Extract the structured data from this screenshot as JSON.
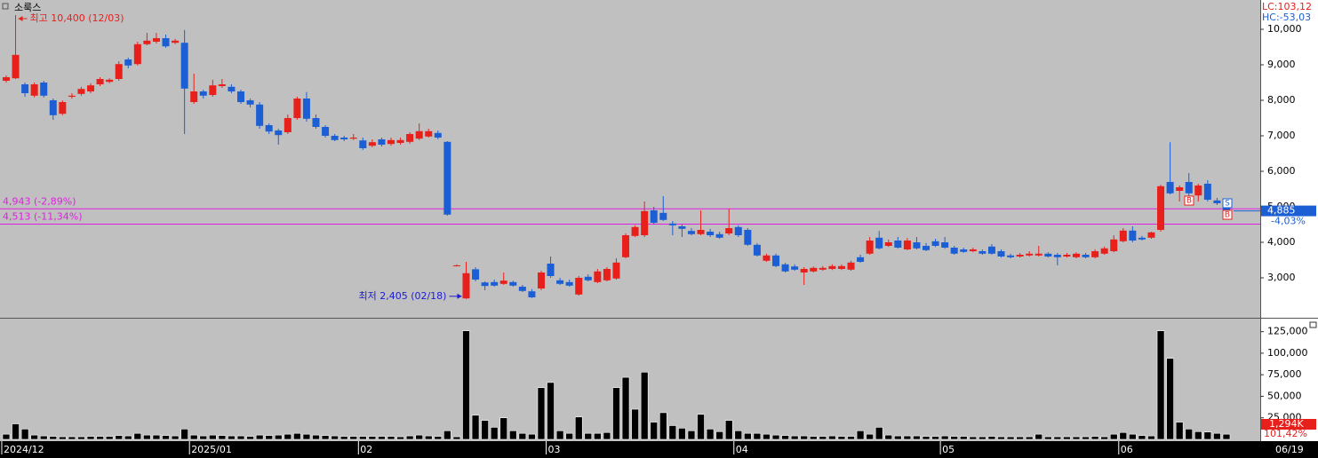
{
  "chart_data": [
    {
      "type": "candlestick",
      "title": "소룩스",
      "open": [
        8550,
        8620,
        8450,
        8130,
        8500,
        8000,
        7620,
        8100,
        8180,
        8250,
        8450,
        8520,
        8600,
        9150,
        9020,
        9580,
        9650,
        9750,
        9620,
        9620,
        7950,
        8250,
        8150,
        8400,
        8380,
        8250,
        8000,
        7880,
        7300,
        7150,
        7100,
        7500,
        8050,
        7500,
        7250,
        7000,
        6950,
        6920,
        6870,
        6720,
        6900,
        6770,
        6800,
        6830,
        6920,
        6980,
        7080,
        6830,
        3350,
        2420,
        3240,
        2870,
        2880,
        2830,
        2880,
        2750,
        2620,
        2700,
        3400,
        2930,
        2880,
        2530,
        3030,
        2880,
        2930,
        2980,
        3580,
        4180,
        4200,
        4900,
        4830,
        4530,
        4450,
        4320,
        4230,
        4300,
        4230,
        4250,
        4430,
        4350,
        3930,
        3480,
        3630,
        3380,
        3320,
        3150,
        3180,
        3230,
        3250,
        3250,
        3230,
        3580,
        3680,
        4130,
        3900,
        4050,
        3800,
        4000,
        3900,
        4030,
        4000,
        3850,
        3800,
        3750,
        3750,
        3880,
        3750,
        3630,
        3600,
        3630,
        3630,
        3680,
        3650,
        3600,
        3580,
        3650,
        3580,
        3680,
        3750,
        4030,
        4330,
        4130,
        4130,
        4350,
        5700,
        5450,
        5700,
        5320,
        5650,
        5180,
        5050
      ],
      "high": [
        8700,
        10400,
        8500,
        8500,
        8550,
        8050,
        8000,
        8200,
        8380,
        8480,
        8650,
        8620,
        9100,
        9200,
        9650,
        9900,
        9900,
        9850,
        9730,
        9980,
        8750,
        8300,
        8580,
        8600,
        8450,
        8300,
        8050,
        7950,
        7350,
        7200,
        7600,
        8100,
        8230,
        7600,
        7300,
        7050,
        7000,
        7050,
        6950,
        6900,
        6950,
        6950,
        6950,
        7100,
        7350,
        7200,
        7150,
        6850,
        3380,
        3450,
        3300,
        2900,
        2950,
        3150,
        2920,
        2800,
        2680,
        3200,
        3600,
        3000,
        2950,
        3050,
        3100,
        3250,
        3300,
        3550,
        4250,
        4480,
        5150,
        5000,
        5300,
        4600,
        4500,
        4400,
        4900,
        4380,
        4300,
        4950,
        4480,
        4400,
        3980,
        3680,
        3680,
        3420,
        3380,
        3300,
        3320,
        3330,
        3380,
        3380,
        3480,
        3650,
        4150,
        4320,
        4080,
        4150,
        4120,
        4150,
        3980,
        4100,
        4150,
        3900,
        3850,
        3850,
        3800,
        3950,
        3800,
        3680,
        3700,
        3750,
        3900,
        3720,
        3700,
        3700,
        3720,
        3700,
        3800,
        3880,
        4200,
        4400,
        4450,
        4180,
        4300,
        5620,
        6820,
        5600,
        5950,
        5650,
        5750,
        5250,
        5100
      ],
      "low": [
        8500,
        8600,
        8100,
        8080,
        8080,
        7450,
        7580,
        8050,
        8130,
        8200,
        8400,
        8480,
        8550,
        8900,
        8980,
        9550,
        9600,
        9480,
        9580,
        7050,
        7900,
        8050,
        8100,
        8350,
        8200,
        7900,
        7800,
        7200,
        7050,
        6750,
        7050,
        7450,
        7400,
        7200,
        6950,
        6850,
        6850,
        6880,
        6600,
        6680,
        6700,
        6720,
        6750,
        6780,
        6880,
        6950,
        6900,
        4750,
        3320,
        2405,
        2900,
        2650,
        2750,
        2800,
        2750,
        2600,
        2430,
        2650,
        3000,
        2800,
        2750,
        2500,
        2900,
        2850,
        2900,
        2950,
        3550,
        4150,
        4150,
        4500,
        4600,
        4200,
        4150,
        4200,
        4200,
        4150,
        4100,
        4200,
        4150,
        3900,
        3600,
        3450,
        3300,
        3150,
        3200,
        2800,
        3150,
        3200,
        3220,
        3220,
        3200,
        3420,
        3650,
        3800,
        3870,
        3820,
        3780,
        3800,
        3750,
        3870,
        3820,
        3650,
        3700,
        3720,
        3650,
        3650,
        3570,
        3550,
        3570,
        3600,
        3600,
        3570,
        3350,
        3570,
        3550,
        3550,
        3550,
        3650,
        3720,
        4000,
        4000,
        4050,
        4100,
        4300,
        5350,
        5150,
        5100,
        5150,
        5150,
        5050,
        4850
      ],
      "close": [
        8650,
        9280,
        8200,
        8450,
        8130,
        7580,
        7950,
        8130,
        8320,
        8420,
        8600,
        8580,
        9020,
        8980,
        9580,
        9680,
        9750,
        9520,
        9680,
        8330,
        8250,
        8130,
        8420,
        8450,
        8250,
        7950,
        7880,
        7280,
        7120,
        7020,
        7500,
        8050,
        7480,
        7250,
        7000,
        6880,
        6900,
        6950,
        6650,
        6820,
        6750,
        6880,
        6880,
        7050,
        7130,
        7130,
        6950,
        4780,
        3350,
        3130,
        2950,
        2770,
        2780,
        2920,
        2780,
        2630,
        2450,
        3150,
        3050,
        2830,
        2780,
        3000,
        2930,
        3180,
        3250,
        3430,
        4200,
        4430,
        4880,
        4550,
        4630,
        4480,
        4380,
        4230,
        4350,
        4200,
        4130,
        4400,
        4200,
        3930,
        3630,
        3630,
        3330,
        3180,
        3230,
        3250,
        3280,
        3280,
        3330,
        3330,
        3430,
        3450,
        4050,
        3830,
        4000,
        3850,
        4050,
        3830,
        3780,
        3900,
        3850,
        3680,
        3730,
        3800,
        3680,
        3680,
        3600,
        3580,
        3650,
        3680,
        3680,
        3600,
        3580,
        3650,
        3680,
        3580,
        3750,
        3830,
        4080,
        4330,
        4050,
        4080,
        4280,
        5580,
        5380,
        5550,
        5380,
        5600,
        5200,
        5100,
        4885
      ],
      "up_color": "#e8201c",
      "down_color": "#1c5fd4",
      "xlim": [
        -0.66,
        133.6
      ],
      "ylim": [
        1900,
        10825
      ],
      "yticks": [
        {
          "value": 3000,
          "label": "3,000"
        },
        {
          "value": 4000,
          "label": "4,000"
        },
        {
          "value": 5000,
          "label": "5,000"
        },
        {
          "value": 6000,
          "label": "6,000"
        },
        {
          "value": 7000,
          "label": "7,000"
        },
        {
          "value": 8000,
          "label": "8,000"
        },
        {
          "value": 9000,
          "label": "9,000"
        },
        {
          "value": 10000,
          "label": "10,000"
        }
      ],
      "annotations": {
        "high": "최고 10,400 (12/03)",
        "low": "최저 2,405 (02/18)"
      },
      "hlines": [
        {
          "value": 4943,
          "label": "4,943 (-2,89%)"
        },
        {
          "value": 4513,
          "label": "4,513 (-11,34%)"
        }
      ],
      "hline_color": "#e020e0",
      "last_price": {
        "value": 4885,
        "label": "4,885"
      },
      "change": "-4,03%",
      "indicators": [
        "LC:103,12",
        "HC:-53,03"
      ],
      "signals": [
        "B",
        "S",
        "B"
      ]
    },
    {
      "type": "bar",
      "values": [
        6000,
        18000,
        12000,
        5000,
        4000,
        3500,
        3000,
        3000,
        3000,
        3500,
        3500,
        3500,
        4500,
        4000,
        7000,
        5000,
        5000,
        4500,
        4000,
        12000,
        5000,
        4000,
        5000,
        4500,
        4000,
        4000,
        3500,
        5000,
        4500,
        5000,
        6000,
        7000,
        6000,
        5000,
        4500,
        4000,
        3500,
        3500,
        3500,
        3500,
        3500,
        3500,
        3000,
        4000,
        5000,
        4000,
        3500,
        10000,
        3000,
        126000,
        28000,
        22000,
        14000,
        25000,
        10000,
        7000,
        6000,
        60000,
        66000,
        10000,
        7000,
        26000,
        7000,
        7000,
        8000,
        60000,
        72000,
        35000,
        78000,
        20000,
        31000,
        16000,
        13000,
        10000,
        29000,
        12000,
        9000,
        22000,
        10000,
        7000,
        7000,
        6000,
        5000,
        4500,
        4000,
        4000,
        3500,
        3500,
        4000,
        3500,
        3500,
        10000,
        6000,
        14000,
        5000,
        4000,
        4000,
        4000,
        3500,
        3500,
        4000,
        3500,
        3500,
        3000,
        3000,
        3500,
        3000,
        3000,
        3000,
        3000,
        6000,
        3000,
        3000,
        3000,
        3000,
        3000,
        3500,
        3000,
        6000,
        8000,
        6000,
        4500,
        4000,
        126000,
        94000,
        20000,
        12000,
        9000,
        8500,
        7000,
        6000
      ],
      "color": "#000000",
      "xlim": [
        -0.66,
        133.6
      ],
      "ylim": [
        0,
        137000
      ],
      "yticks": [
        {
          "value": 25000,
          "label": "25,000"
        },
        {
          "value": 50000,
          "label": "50,000"
        },
        {
          "value": 75000,
          "label": "75,000"
        },
        {
          "value": 100000,
          "label": "100,000"
        },
        {
          "value": 125000,
          "label": "125,000"
        }
      ],
      "xticks": [
        {
          "value": 0,
          "label": "2024/12"
        },
        {
          "value": 20,
          "label": "2025/01"
        },
        {
          "value": 38,
          "label": "02"
        },
        {
          "value": 58,
          "label": "03"
        },
        {
          "value": 78,
          "label": "04"
        },
        {
          "value": 100,
          "label": "05"
        },
        {
          "value": 119,
          "label": "06"
        }
      ],
      "end_date": "06/19",
      "volume_label": "1,294K",
      "volume_ratio": "101,42%"
    }
  ]
}
